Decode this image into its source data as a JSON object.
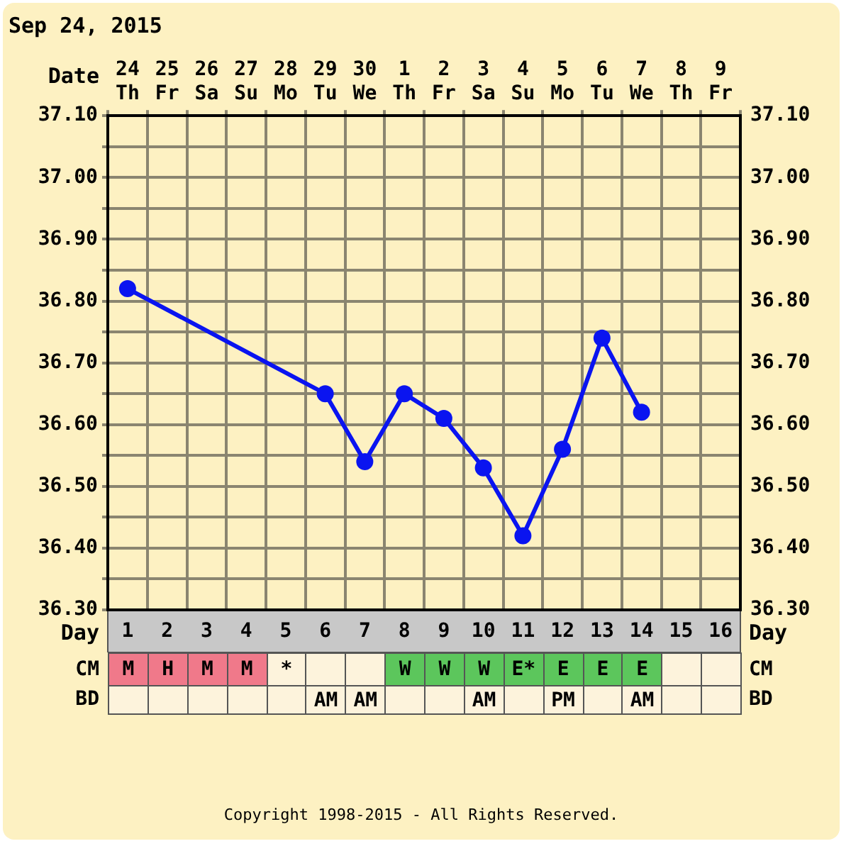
{
  "chart_data": [
    {
      "type": "line",
      "title": "Sep 24, 2015",
      "xlabel": "Date",
      "categories": [
        "24 Th",
        "25 Fr",
        "26 Sa",
        "27 Su",
        "28 Mo",
        "29 Tu",
        "30 We",
        "1 Th",
        "2 Fr",
        "3 Sa",
        "4 Su",
        "5 Mo",
        "6 Tu",
        "7 We",
        "8 Th",
        "9 Fr"
      ],
      "series": [
        {
          "color": "#0a14f0",
          "values": [
            36.82,
            null,
            null,
            null,
            null,
            36.65,
            36.54,
            36.65,
            36.61,
            36.53,
            36.42,
            36.56,
            36.74,
            36.62,
            null,
            null
          ]
        }
      ],
      "ylim": [
        36.3,
        37.1
      ],
      "yticks": [
        {
          "value": 36.3,
          "label": "36.30"
        },
        {
          "value": 36.35,
          "label": null
        },
        {
          "value": 36.4,
          "label": "36.40"
        },
        {
          "value": 36.45,
          "label": null
        },
        {
          "value": 36.5,
          "label": "36.50"
        },
        {
          "value": 36.55,
          "label": null
        },
        {
          "value": 36.6,
          "label": "36.60"
        },
        {
          "value": 36.65,
          "label": null
        },
        {
          "value": 36.7,
          "label": "36.70"
        },
        {
          "value": 36.75,
          "label": null
        },
        {
          "value": 36.8,
          "label": "36.80"
        },
        {
          "value": 36.85,
          "label": null
        },
        {
          "value": 36.9,
          "label": "36.90"
        },
        {
          "value": 36.95,
          "label": null
        },
        {
          "value": 37.0,
          "label": "37.00"
        },
        {
          "value": 37.05,
          "label": null
        },
        {
          "value": 37.1,
          "label": "37.10"
        }
      ],
      "y2lim": [
        36.3,
        37.1
      ],
      "y2ticks": [
        {
          "value": 36.3,
          "label": "36.30"
        },
        {
          "value": 36.35,
          "label": null
        },
        {
          "value": 36.4,
          "label": "36.40"
        },
        {
          "value": 36.45,
          "label": null
        },
        {
          "value": 36.5,
          "label": "36.50"
        },
        {
          "value": 36.55,
          "label": null
        },
        {
          "value": 36.6,
          "label": "36.60"
        },
        {
          "value": 36.65,
          "label": null
        },
        {
          "value": 36.7,
          "label": "36.70"
        },
        {
          "value": 36.75,
          "label": null
        },
        {
          "value": 36.8,
          "label": "36.80"
        },
        {
          "value": 36.85,
          "label": null
        },
        {
          "value": 36.9,
          "label": "36.90"
        },
        {
          "value": 36.95,
          "label": null
        },
        {
          "value": 37.0,
          "label": "37.00"
        },
        {
          "value": 37.05,
          "label": null
        },
        {
          "value": 37.1,
          "label": "37.10"
        }
      ],
      "x2label": "Day",
      "x2lim": [
        0.5,
        16.5
      ],
      "x2ticks": [
        1,
        2,
        3,
        4,
        5,
        6,
        7,
        8,
        9,
        10,
        11,
        12,
        13,
        14,
        15,
        16
      ],
      "grid": true,
      "legend": false,
      "marker": "circle",
      "line_style": "solid"
    },
    {
      "type": "other",
      "y_categories": [
        "CM",
        "BD"
      ],
      "y2_categories": [
        "CM",
        "BD"
      ],
      "cell_labels": [
        [
          "M",
          "H",
          "M",
          "M",
          "*",
          null,
          null,
          "W",
          "W",
          "W",
          "E*",
          "E",
          "E",
          "E",
          null,
          null
        ],
        [
          null,
          null,
          null,
          null,
          null,
          "AM",
          "AM",
          null,
          null,
          "AM",
          null,
          "PM",
          null,
          "AM",
          null,
          null
        ]
      ],
      "colors": [
        "#f0798a",
        "#f0798a",
        "#f0798a",
        "#f0798a",
        null,
        null,
        null,
        "#5cc65c",
        "#5cc65c",
        "#5cc65c",
        "#5cc65c",
        "#5cc65c",
        "#5cc65c",
        "#5cc65c",
        null,
        null
      ],
      "annotations": [
        "Copyright 1998-2015 - All Rights Reserved."
      ]
    }
  ]
}
